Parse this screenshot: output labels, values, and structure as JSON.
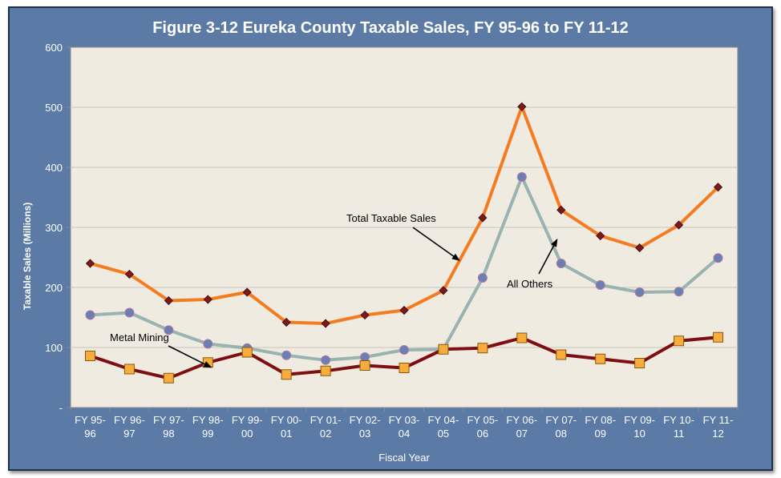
{
  "chart_data": {
    "type": "line",
    "title": "Figure 3-12 Eureka County Taxable Sales, FY 95-96 to FY 11-12",
    "xlabel": "Fiscal Year",
    "ylabel": "Taxable Sales (Millions)",
    "ylim": [
      0,
      600
    ],
    "yticks": [
      "-",
      "100",
      "200",
      "300",
      "400",
      "500",
      "600"
    ],
    "grid": true,
    "categories": [
      [
        "FY 95-",
        "96"
      ],
      [
        "FY 96-",
        "97"
      ],
      [
        "FY 97-",
        "98"
      ],
      [
        "FY 98-",
        "99"
      ],
      [
        "FY 99-",
        "00"
      ],
      [
        "FY 00-",
        "01"
      ],
      [
        "FY 01-",
        "02"
      ],
      [
        "FY 02-",
        "03"
      ],
      [
        "FY 03-",
        "04"
      ],
      [
        "FY 04-",
        "05"
      ],
      [
        "FY 05-",
        "06"
      ],
      [
        "FY 06-",
        "07"
      ],
      [
        "FY 07-",
        "08"
      ],
      [
        "FY 08-",
        "09"
      ],
      [
        "FY 09-",
        "10"
      ],
      [
        "FY 10-",
        "11"
      ],
      [
        "FY 11-",
        "12"
      ]
    ],
    "series": [
      {
        "name": "Total Taxable Sales",
        "color": "#f47b20",
        "marker": "diamond",
        "marker_color": "#7a1a1a",
        "values": [
          240,
          222,
          178,
          180,
          192,
          142,
          140,
          154,
          162,
          195,
          316,
          501,
          329,
          286,
          266,
          304,
          367
        ]
      },
      {
        "name": "All Others",
        "color": "#99b4b0",
        "marker": "circle",
        "marker_color": "#6b7fb5",
        "values": [
          154,
          158,
          129,
          106,
          99,
          87,
          79,
          84,
          96,
          97,
          216,
          384,
          240,
          204,
          192,
          193,
          249
        ]
      },
      {
        "name": "Metal Mining",
        "color": "#7d0f12",
        "marker": "square",
        "marker_color": "#f6ad3b",
        "values": [
          86,
          64,
          49,
          75,
          92,
          55,
          61,
          70,
          66,
          97,
          99,
          116,
          88,
          81,
          74,
          111,
          117
        ]
      }
    ],
    "annotations": [
      {
        "text": "Total Taxable Sales",
        "series": 0
      },
      {
        "text": "All Others",
        "series": 1
      },
      {
        "text": "Metal Mining",
        "series": 2
      }
    ]
  }
}
